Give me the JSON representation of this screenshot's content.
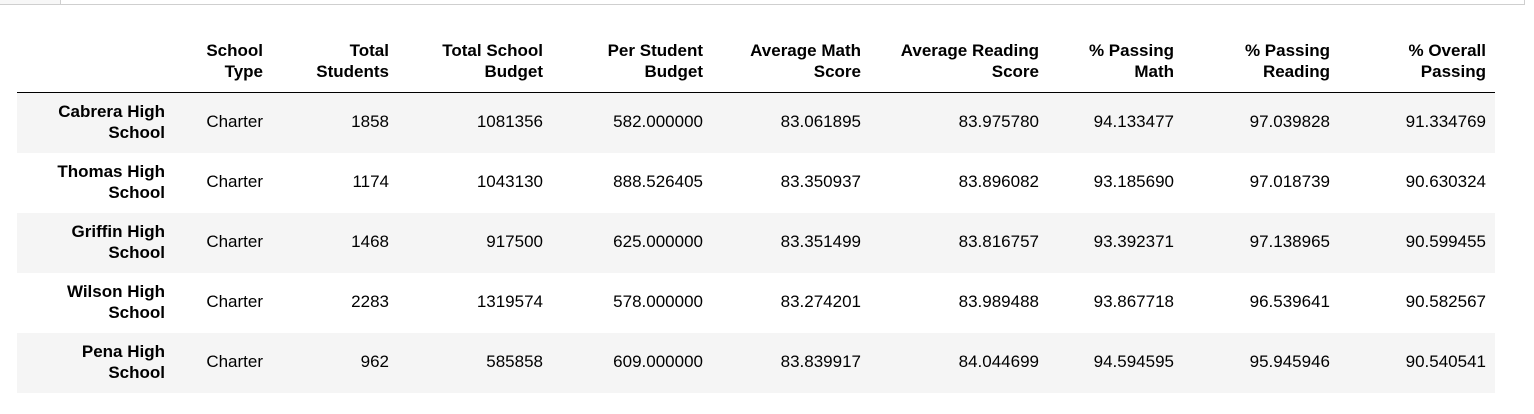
{
  "table": {
    "columns": [
      "",
      "School Type",
      "Total Students",
      "Total School Budget",
      "Per Student Budget",
      "Average Math Score",
      "Average Reading Score",
      "% Passing Math",
      "% Passing Reading",
      "% Overall Passing"
    ],
    "header_lines": [
      [
        "",
        ""
      ],
      [
        "School",
        "Type"
      ],
      [
        "Total",
        "Students"
      ],
      [
        "Total School",
        "Budget"
      ],
      [
        "Per Student",
        "Budget"
      ],
      [
        "Average Math",
        "Score"
      ],
      [
        "Average Reading",
        "Score"
      ],
      [
        "% Passing",
        "Math"
      ],
      [
        "% Passing",
        "Reading"
      ],
      [
        "% Overall",
        "Passing"
      ]
    ],
    "rows": [
      {
        "school_lines": [
          "Cabrera High",
          "School"
        ],
        "cells": [
          "Charter",
          "1858",
          "1081356",
          "582.000000",
          "83.061895",
          "83.975780",
          "94.133477",
          "97.039828",
          "91.334769"
        ]
      },
      {
        "school_lines": [
          "Thomas High",
          "School"
        ],
        "cells": [
          "Charter",
          "1174",
          "1043130",
          "888.526405",
          "83.350937",
          "83.896082",
          "93.185690",
          "97.018739",
          "90.630324"
        ]
      },
      {
        "school_lines": [
          "Griffin High",
          "School"
        ],
        "cells": [
          "Charter",
          "1468",
          "917500",
          "625.000000",
          "83.351499",
          "83.816757",
          "93.392371",
          "97.138965",
          "90.599455"
        ]
      },
      {
        "school_lines": [
          "Wilson High",
          "School"
        ],
        "cells": [
          "Charter",
          "2283",
          "1319574",
          "578.000000",
          "83.274201",
          "83.989488",
          "93.867718",
          "96.539641",
          "90.582567"
        ]
      },
      {
        "school_lines": [
          "Pena High",
          "School"
        ],
        "cells": [
          "Charter",
          "962",
          "585858",
          "609.000000",
          "83.839917",
          "84.044699",
          "94.594595",
          "95.945946",
          "90.540541"
        ]
      }
    ]
  },
  "chart_data": {
    "type": "table",
    "columns": [
      "School Type",
      "Total Students",
      "Total School Budget",
      "Per Student Budget",
      "Average Math Score",
      "Average Reading Score",
      "% Passing Math",
      "% Passing Reading",
      "% Overall Passing"
    ],
    "index": [
      "Cabrera High School",
      "Thomas High School",
      "Griffin High School",
      "Wilson High School",
      "Pena High School"
    ]
  }
}
